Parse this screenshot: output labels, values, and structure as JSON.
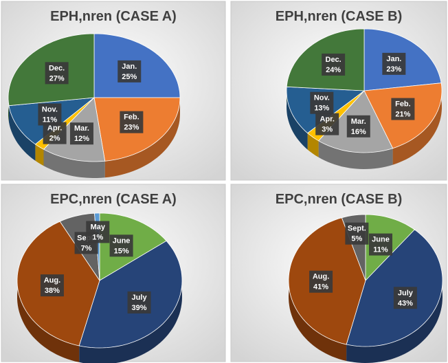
{
  "chart_data": [
    {
      "type": "pie",
      "title": "EPH,nren  (CASE A)",
      "categories": [
        "Jan.",
        "Feb.",
        "Mar.",
        "Apr.",
        "Nov.",
        "Dec."
      ],
      "values": [
        25,
        23,
        12,
        2,
        11,
        27
      ],
      "value_labels": [
        "25%",
        "23%",
        "12%",
        "2%",
        "11%",
        "27%"
      ],
      "colors": [
        "#4472c4",
        "#ed7d31",
        "#a5a5a5",
        "#ffc000",
        "#255e91",
        "#43783a"
      ]
    },
    {
      "type": "pie",
      "title": "EPH,nren  (CASE B)",
      "categories": [
        "Jan.",
        "Feb.",
        "Mar.",
        "Apr.",
        "Nov.",
        "Dec."
      ],
      "values": [
        23,
        21,
        16,
        3,
        13,
        24
      ],
      "value_labels": [
        "23%",
        "21%",
        "16%",
        "3%",
        "13%",
        "24%"
      ],
      "colors": [
        "#4472c4",
        "#ed7d31",
        "#a5a5a5",
        "#ffc000",
        "#255e91",
        "#43783a"
      ]
    },
    {
      "type": "pie",
      "title": "EPC,nren  (CASE A)",
      "categories": [
        "June",
        "July",
        "Aug.",
        "Sept.",
        "May"
      ],
      "values": [
        15,
        39,
        38,
        7,
        1
      ],
      "value_labels": [
        "15%",
        "39%",
        "38%",
        "7%",
        "1%"
      ],
      "colors": [
        "#70ad47",
        "#264478",
        "#9e480e",
        "#636363",
        "#5b9bd5"
      ]
    },
    {
      "type": "pie",
      "title": "EPC,nren  (CASE B)",
      "categories": [
        "June",
        "July",
        "Aug.",
        "Sept."
      ],
      "values": [
        11,
        43,
        41,
        5
      ],
      "value_labels": [
        "11%",
        "43%",
        "41%",
        "5%"
      ],
      "colors": [
        "#70ad47",
        "#264478",
        "#9e480e",
        "#636363"
      ]
    }
  ]
}
